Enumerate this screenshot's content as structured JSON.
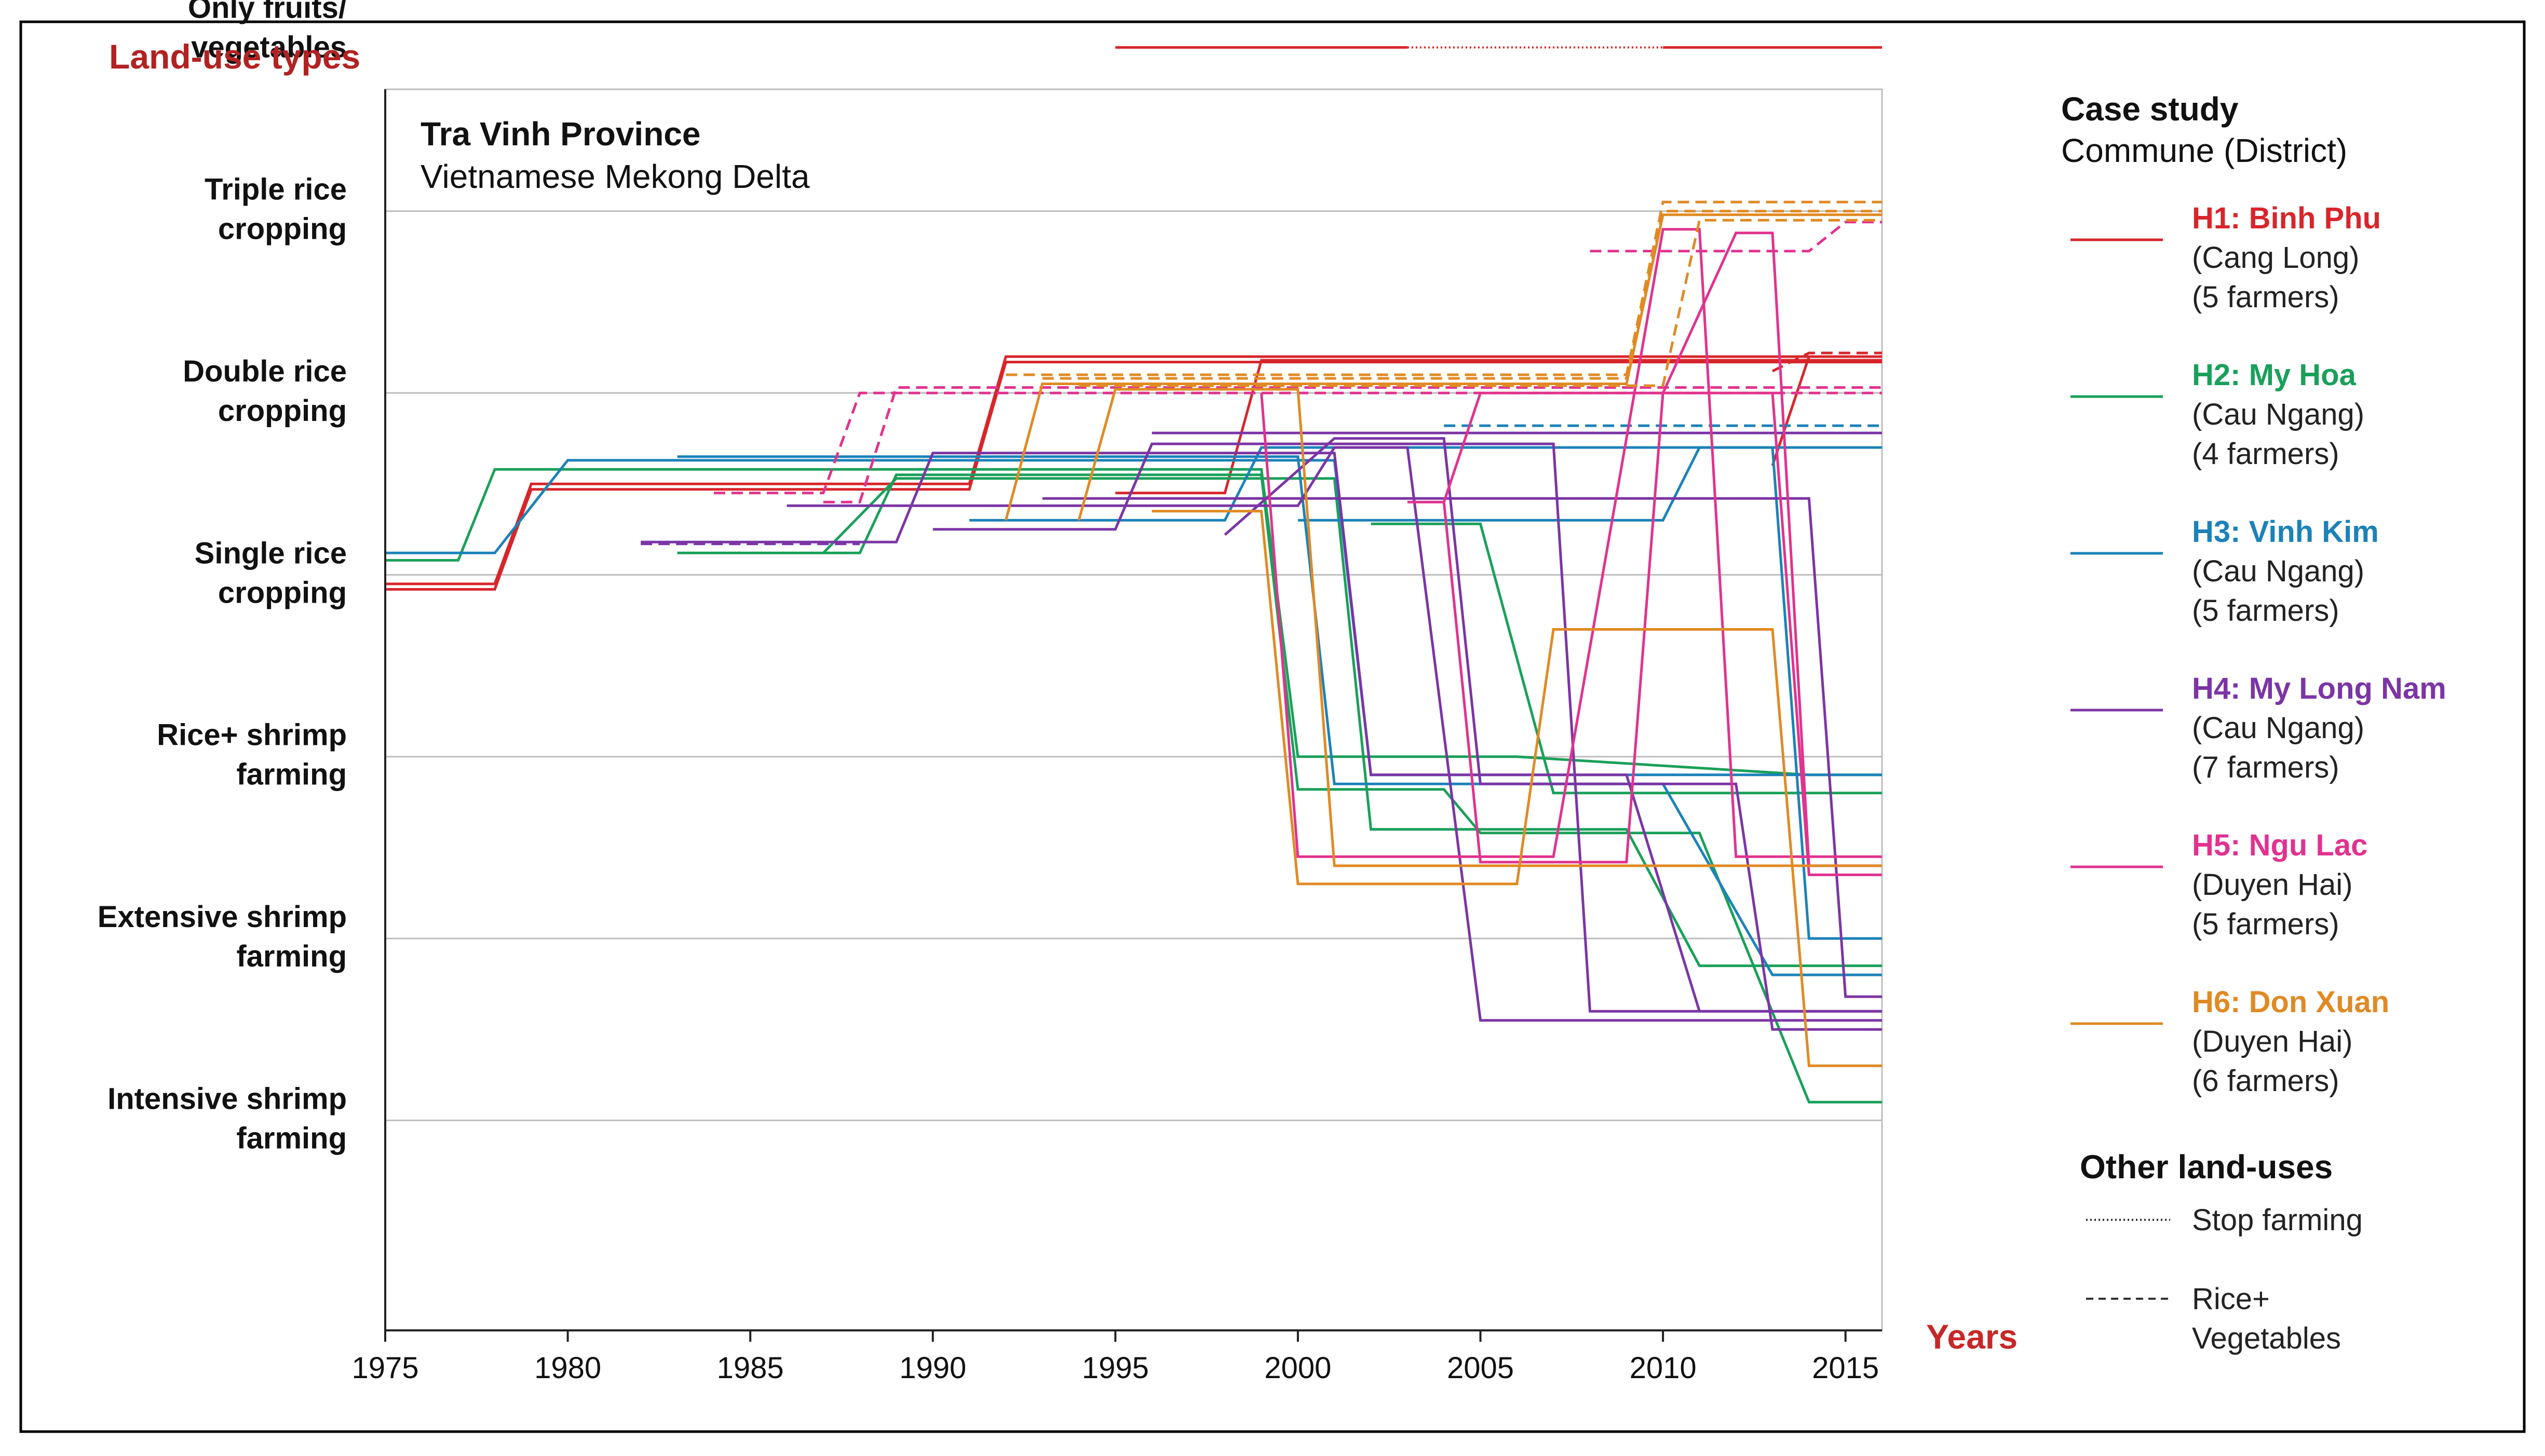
{
  "chart_data": {
    "type": "line",
    "title": "Tra Vinh Province",
    "subtitle": "Vietnamese Mekong Delta",
    "xlabel": "Years",
    "ylabel": "Land-use types",
    "xlim": [
      1975,
      2016
    ],
    "xticks": [
      1975,
      1980,
      1985,
      1990,
      1995,
      2000,
      2005,
      2010,
      2015
    ],
    "categories": [
      "Only fruits/ vegetables",
      "Triple rice cropping",
      "Double rice cropping",
      "Single rice cropping",
      "Rice+ shrimp farming",
      "Extensive shrimp farming",
      "Intensive shrimp farming"
    ],
    "category_lines": [
      [
        "Only fruits/",
        "vegetables"
      ],
      [
        "Triple rice",
        "cropping"
      ],
      [
        "Double rice",
        "cropping"
      ],
      [
        "Single rice",
        "cropping"
      ],
      [
        "Rice+ shrimp",
        "farming"
      ],
      [
        "Extensive shrimp",
        "farming"
      ],
      [
        "Intensive shrimp",
        "farming"
      ]
    ],
    "y_note": "Category index: 0 = Only fruits/vegetables ... 6 = Intensive shrimp farming; fractional offsets separate overlapping farmers within a band",
    "legend": {
      "title": "Case study",
      "subtitle": "Commune (District)",
      "entries": [
        {
          "id": "H1",
          "name": "H1: Binh Phu",
          "district": "(Cang Long)",
          "farmers": "(5 farmers)",
          "color": "#d7262b"
        },
        {
          "id": "H2",
          "name": "H2: My Hoa",
          "district": "(Cau Ngang)",
          "farmers": "(4 farmers)",
          "color": "#1aa05a"
        },
        {
          "id": "H3",
          "name": "H3: Vinh Kim",
          "district": "(Cau Ngang)",
          "farmers": "(5 farmers)",
          "color": "#1c82b8"
        },
        {
          "id": "H4",
          "name": "H4: My Long Nam",
          "district": "(Cau Ngang)",
          "farmers": "(7 farmers)",
          "color": "#7b35a5"
        },
        {
          "id": "H5",
          "name": "H5: Ngu Lac",
          "district": "(Duyen Hai)",
          "farmers": "(5 farmers)",
          "color": "#e0338f"
        },
        {
          "id": "H6",
          "name": "H6: Don Xuan",
          "district": "(Duyen Hai)",
          "farmers": "(6 farmers)",
          "color": "#e08a24"
        }
      ],
      "other_title": "Other land-uses",
      "other_entries": [
        {
          "style": "dotted",
          "label": "Stop farming"
        },
        {
          "style": "dashed",
          "label": "Rice+ Vegetables",
          "lines": [
            "Rice+",
            "Vegetables"
          ]
        }
      ]
    },
    "series": [
      {
        "name": "H1-a",
        "group": "H1",
        "style": "solid",
        "points": [
          [
            1975,
            3.05
          ],
          [
            1978,
            3.05
          ],
          [
            1979,
            2.5
          ],
          [
            1991,
            2.5
          ],
          [
            1992,
            1.8
          ],
          [
            2016,
            1.8
          ]
        ]
      },
      {
        "name": "H1-b",
        "group": "H1",
        "style": "solid",
        "points": [
          [
            1975,
            3.08
          ],
          [
            1978,
            3.08
          ],
          [
            1979,
            2.53
          ],
          [
            1991,
            2.53
          ],
          [
            1992,
            1.83
          ],
          [
            2016,
            1.83
          ]
        ]
      },
      {
        "name": "H1-c",
        "group": "H1",
        "style": "solid",
        "points": [
          [
            1995,
            2.55
          ],
          [
            1998,
            2.55
          ],
          [
            1999,
            1.82
          ],
          [
            2016,
            1.82
          ]
        ]
      },
      {
        "name": "H1-d",
        "group": "H1",
        "style": "solid",
        "points": [
          [
            2013,
            2.4
          ],
          [
            2014,
            1.8
          ],
          [
            2016,
            1.8
          ]
        ]
      },
      {
        "name": "H1-e",
        "group": "H1",
        "style": "dashed",
        "points": [
          [
            2013,
            1.88
          ],
          [
            2014,
            1.78
          ],
          [
            2016,
            1.78
          ]
        ]
      },
      {
        "name": "H1-fruit",
        "group": "H1",
        "style": "solid",
        "points": [
          [
            1995,
            0.1
          ],
          [
            2003,
            0.1
          ]
        ]
      },
      {
        "name": "H1-fruit-stop",
        "group": "H1",
        "style": "dotted",
        "points": [
          [
            2003,
            0.1
          ],
          [
            2010,
            0.1
          ]
        ]
      },
      {
        "name": "H1-fruit2",
        "group": "H1",
        "style": "solid",
        "points": [
          [
            2010,
            0.1
          ],
          [
            2016,
            0.1
          ]
        ]
      },
      {
        "name": "H2-a",
        "group": "H2",
        "style": "solid",
        "points": [
          [
            1975,
            2.92
          ],
          [
            1977,
            2.92
          ],
          [
            1978,
            2.42
          ],
          [
            1999,
            2.42
          ],
          [
            2000,
            4.0
          ],
          [
            2006,
            4.0
          ],
          [
            2014,
            4.1
          ],
          [
            2016,
            4.1
          ]
        ]
      },
      {
        "name": "H2-b",
        "group": "H2",
        "style": "solid",
        "points": [
          [
            1983,
            2.88
          ],
          [
            1988,
            2.88
          ],
          [
            1989,
            2.45
          ],
          [
            1999,
            2.45
          ],
          [
            2000,
            4.18
          ],
          [
            2004,
            4.18
          ],
          [
            2005,
            4.42
          ],
          [
            2011,
            4.42
          ],
          [
            2014,
            5.9
          ],
          [
            2016,
            5.9
          ]
        ]
      },
      {
        "name": "H2-c",
        "group": "H2",
        "style": "solid",
        "points": [
          [
            1987,
            2.88
          ],
          [
            1989,
            2.47
          ],
          [
            2001,
            2.47
          ],
          [
            2002,
            4.4
          ],
          [
            2005,
            4.4
          ],
          [
            2009,
            4.4
          ],
          [
            2011,
            5.15
          ],
          [
            2016,
            5.15
          ]
        ]
      },
      {
        "name": "H2-d",
        "group": "H2",
        "style": "solid",
        "points": [
          [
            2002,
            2.72
          ],
          [
            2005,
            2.72
          ],
          [
            2007,
            4.2
          ],
          [
            2016,
            4.2
          ]
        ]
      },
      {
        "name": "H3-a",
        "group": "H3",
        "style": "solid",
        "points": [
          [
            1975,
            2.88
          ],
          [
            1978,
            2.88
          ],
          [
            1980,
            2.37
          ],
          [
            2001,
            2.37
          ],
          [
            2002,
            4.1
          ],
          [
            2016,
            4.1
          ]
        ]
      },
      {
        "name": "H3-b",
        "group": "H3",
        "style": "solid",
        "points": [
          [
            1983,
            2.35
          ],
          [
            2000,
            2.35
          ],
          [
            2001,
            4.15
          ],
          [
            2010,
            4.15
          ],
          [
            2013,
            5.2
          ],
          [
            2016,
            5.2
          ]
        ]
      },
      {
        "name": "H3-c",
        "group": "H3",
        "style": "solid",
        "points": [
          [
            1991,
            2.7
          ],
          [
            1998,
            2.7
          ],
          [
            1999,
            2.3
          ],
          [
            2016,
            2.3
          ]
        ]
      },
      {
        "name": "H3-d",
        "group": "H3",
        "style": "solid",
        "points": [
          [
            2000,
            2.7
          ],
          [
            2010,
            2.7
          ],
          [
            2011,
            2.3
          ],
          [
            2013,
            2.3
          ],
          [
            2014,
            5.0
          ],
          [
            2016,
            5.0
          ]
        ]
      },
      {
        "name": "H3-e",
        "group": "H3",
        "style": "dashed",
        "points": [
          [
            2004,
            2.18
          ],
          [
            2016,
            2.18
          ]
        ]
      },
      {
        "name": "H4-a",
        "group": "H4",
        "style": "solid",
        "points": [
          [
            1982,
            2.82
          ],
          [
            1989,
            2.82
          ],
          [
            1990,
            2.33
          ],
          [
            2001,
            2.33
          ],
          [
            2002,
            4.1
          ],
          [
            2009,
            4.1
          ],
          [
            2011,
            5.4
          ],
          [
            2016,
            5.4
          ]
        ]
      },
      {
        "name": "H4-b",
        "group": "H4",
        "style": "solid",
        "points": [
          [
            1986,
            2.62
          ],
          [
            2000,
            2.62
          ],
          [
            2001,
            2.3
          ],
          [
            2003,
            2.3
          ],
          [
            2005,
            5.45
          ],
          [
            2016,
            5.45
          ]
        ]
      },
      {
        "name": "H4-c",
        "group": "H4",
        "style": "solid",
        "points": [
          [
            1990,
            2.75
          ],
          [
            1995,
            2.75
          ],
          [
            1996,
            2.28
          ],
          [
            2007,
            2.28
          ],
          [
            2008,
            5.4
          ],
          [
            2016,
            5.4
          ]
        ]
      },
      {
        "name": "H4-d",
        "group": "H4",
        "style": "solid",
        "points": [
          [
            1993,
            2.58
          ],
          [
            2014,
            2.58
          ],
          [
            2015,
            5.32
          ],
          [
            2016,
            5.32
          ]
        ]
      },
      {
        "name": "H4-e",
        "group": "H4",
        "style": "solid",
        "points": [
          [
            1996,
            2.22
          ],
          [
            2016,
            2.22
          ]
        ]
      },
      {
        "name": "H4-f",
        "group": "H4",
        "style": "solid",
        "points": [
          [
            1998,
            2.78
          ],
          [
            2001,
            2.25
          ],
          [
            2004,
            2.25
          ],
          [
            2005,
            4.15
          ],
          [
            2012,
            4.15
          ],
          [
            2013,
            5.5
          ],
          [
            2016,
            5.5
          ]
        ]
      },
      {
        "name": "H4-g",
        "group": "H4",
        "style": "dashed",
        "points": [
          [
            1982,
            2.83
          ],
          [
            1988,
            2.83
          ]
        ]
      },
      {
        "name": "H5-a",
        "group": "H5",
        "style": "dashed",
        "points": [
          [
            1984,
            2.55
          ],
          [
            1987,
            2.55
          ],
          [
            1988,
            2.0
          ],
          [
            2016,
            2.0
          ]
        ]
      },
      {
        "name": "H5-b",
        "group": "H5",
        "style": "dashed",
        "points": [
          [
            1987,
            2.6
          ],
          [
            1988,
            2.6
          ],
          [
            1989,
            1.97
          ],
          [
            2016,
            1.97
          ]
        ]
      },
      {
        "name": "H5-c",
        "group": "H5",
        "style": "dashed",
        "points": [
          [
            2008,
            1.22
          ],
          [
            2014,
            1.22
          ],
          [
            2015,
            1.06
          ],
          [
            2016,
            1.06
          ]
        ]
      },
      {
        "name": "H5-d",
        "group": "H5",
        "style": "solid",
        "points": [
          [
            1999,
            2.0
          ],
          [
            2000,
            4.55
          ],
          [
            2007,
            4.55
          ],
          [
            2010,
            1.1
          ],
          [
            2011,
            1.1
          ],
          [
            2012,
            4.55
          ],
          [
            2016,
            4.55
          ]
        ]
      },
      {
        "name": "H5-e",
        "group": "H5",
        "style": "solid",
        "points": [
          [
            2004,
            2.6
          ],
          [
            2005,
            2.0
          ],
          [
            2010,
            2.0
          ],
          [
            2012,
            1.12
          ],
          [
            2013,
            1.12
          ],
          [
            2014,
            4.6
          ],
          [
            2016,
            4.6
          ]
        ]
      },
      {
        "name": "H5-f",
        "group": "H5",
        "style": "solid",
        "points": [
          [
            2003,
            2.6
          ],
          [
            2004,
            2.6
          ],
          [
            2005,
            4.58
          ],
          [
            2009,
            4.58
          ],
          [
            2010,
            2.0
          ],
          [
            2013,
            2.0
          ],
          [
            2014,
            4.65
          ],
          [
            2016,
            4.65
          ]
        ]
      },
      {
        "name": "H6-a",
        "group": "H6",
        "style": "dashed",
        "points": [
          [
            1992,
            1.9
          ],
          [
            2009,
            1.9
          ],
          [
            2010,
            0.95
          ],
          [
            2016,
            0.95
          ]
        ]
      },
      {
        "name": "H6-b",
        "group": "H6",
        "style": "dashed",
        "points": [
          [
            1993,
            1.92
          ],
          [
            2009,
            1.92
          ],
          [
            2010,
            1.0
          ],
          [
            2016,
            1.0
          ]
        ]
      },
      {
        "name": "H6-c",
        "group": "H6",
        "style": "dashed",
        "points": [
          [
            1994,
            1.96
          ],
          [
            2010,
            1.96
          ],
          [
            2011,
            1.05
          ],
          [
            2016,
            1.05
          ]
        ]
      },
      {
        "name": "H6-d",
        "group": "H6",
        "style": "solid",
        "points": [
          [
            1992,
            2.7
          ],
          [
            1993,
            1.95
          ],
          [
            2009,
            1.95
          ],
          [
            2010,
            1.02
          ],
          [
            2016,
            1.02
          ]
        ]
      },
      {
        "name": "H6-e",
        "group": "H6",
        "style": "solid",
        "points": [
          [
            1994,
            2.7
          ],
          [
            1995,
            1.98
          ],
          [
            2000,
            1.98
          ],
          [
            2001,
            4.6
          ],
          [
            2010,
            4.6
          ],
          [
            2016,
            4.6
          ]
        ]
      },
      {
        "name": "H6-f",
        "group": "H6",
        "style": "solid",
        "points": [
          [
            1996,
            2.65
          ],
          [
            1999,
            2.65
          ],
          [
            2000,
            4.7
          ],
          [
            2006,
            4.7
          ],
          [
            2007,
            3.3
          ],
          [
            2013,
            3.3
          ],
          [
            2014,
            5.7
          ],
          [
            2016,
            5.7
          ]
        ]
      }
    ]
  }
}
